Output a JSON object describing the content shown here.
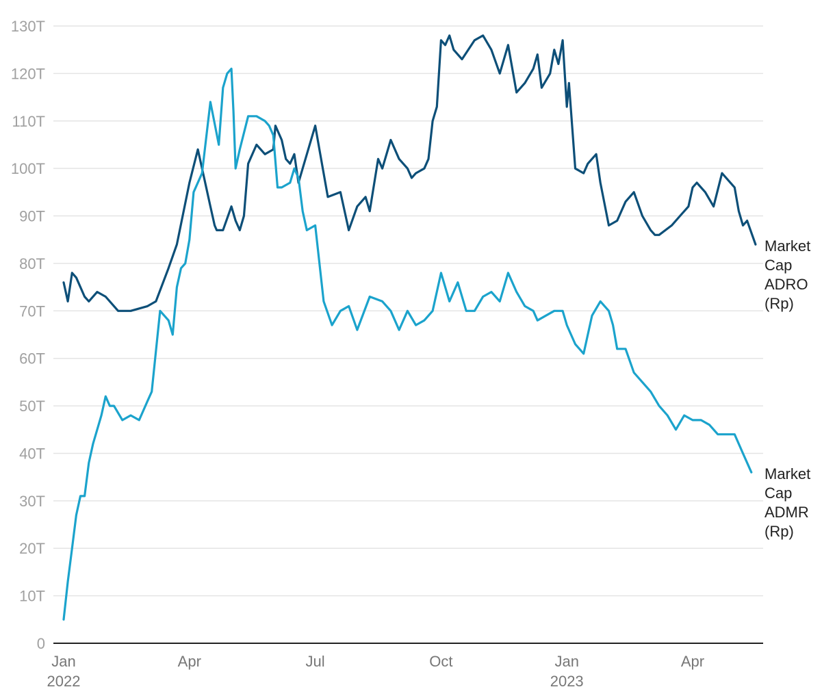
{
  "chart_data": {
    "type": "line",
    "title": "",
    "xlabel": "",
    "ylabel": "",
    "ylim": [
      0,
      130
    ],
    "y_unit_suffix": "T",
    "y_ticks": [
      "0",
      "10T",
      "20T",
      "30T",
      "40T",
      "50T",
      "60T",
      "70T",
      "80T",
      "90T",
      "100T",
      "110T",
      "120T",
      "130T"
    ],
    "x_ticks": [
      {
        "month": 0,
        "label": "Jan",
        "sub": "2022"
      },
      {
        "month": 3,
        "label": "Apr",
        "sub": ""
      },
      {
        "month": 6,
        "label": "Jul",
        "sub": ""
      },
      {
        "month": 9,
        "label": "Oct",
        "sub": ""
      },
      {
        "month": 12,
        "label": "Jan",
        "sub": "2023"
      },
      {
        "month": 15,
        "label": "Apr",
        "sub": ""
      }
    ],
    "x_unit": "months since Jan 2022",
    "xlim": [
      0,
      16.7
    ],
    "grid": true,
    "legend": "end-of-line labels",
    "series": [
      {
        "name": "Market Cap ADRO (Rp)",
        "label_lines": [
          "Market",
          "Cap",
          "ADRO",
          "(Rp)"
        ],
        "color": "#0d4f78",
        "x": [
          0.0,
          0.1,
          0.2,
          0.3,
          0.5,
          0.6,
          0.8,
          1.0,
          1.3,
          1.6,
          2.0,
          2.2,
          2.5,
          2.7,
          3.0,
          3.2,
          3.4,
          3.5,
          3.6,
          3.65,
          3.8,
          4.0,
          4.1,
          4.2,
          4.3,
          4.4,
          4.6,
          4.8,
          5.0,
          5.05,
          5.2,
          5.3,
          5.4,
          5.5,
          5.6,
          5.7,
          6.0,
          6.1,
          6.3,
          6.6,
          6.8,
          7.0,
          7.2,
          7.3,
          7.5,
          7.6,
          7.8,
          8.0,
          8.2,
          8.3,
          8.4,
          8.6,
          8.7,
          8.8,
          8.9,
          9.0,
          9.1,
          9.2,
          9.3,
          9.5,
          9.8,
          10.0,
          10.2,
          10.4,
          10.6,
          10.8,
          11.0,
          11.2,
          11.3,
          11.4,
          11.6,
          11.7,
          11.8,
          11.9,
          12.0,
          12.05,
          12.2,
          12.4,
          12.5,
          12.7,
          12.8,
          13.0,
          13.2,
          13.4,
          13.6,
          13.8,
          14.0,
          14.1,
          14.2,
          14.5,
          14.7,
          14.9,
          15.0,
          15.1,
          15.3,
          15.5,
          15.7,
          16.0,
          16.1,
          16.2,
          16.3,
          16.5
        ],
        "values": [
          76,
          72,
          78,
          77,
          73,
          72,
          74,
          73,
          70,
          70,
          71,
          72,
          79,
          84,
          97,
          104,
          96,
          92,
          88,
          87,
          87,
          92,
          89,
          87,
          90,
          101,
          105,
          103,
          104,
          109,
          106,
          102,
          101,
          103,
          97,
          100,
          109,
          104,
          94,
          95,
          87,
          92,
          94,
          91,
          102,
          100,
          106,
          102,
          100,
          98,
          99,
          100,
          102,
          110,
          113,
          127,
          126,
          128,
          125,
          123,
          127,
          128,
          125,
          120,
          126,
          116,
          118,
          121,
          124,
          117,
          120,
          125,
          122,
          127,
          113,
          118,
          100,
          99,
          101,
          103,
          97,
          88,
          89,
          93,
          95,
          90,
          87,
          86,
          86,
          88,
          90,
          92,
          96,
          97,
          95,
          92,
          99,
          96,
          91,
          88,
          89,
          84
        ]
      },
      {
        "name": "Market Cap ADMR (Rp)",
        "label_lines": [
          "Market",
          "Cap",
          "ADMR",
          "(Rp)"
        ],
        "color": "#1ba3cc",
        "x": [
          0.0,
          0.1,
          0.2,
          0.3,
          0.4,
          0.5,
          0.6,
          0.7,
          0.8,
          0.9,
          1.0,
          1.1,
          1.2,
          1.4,
          1.6,
          1.8,
          2.0,
          2.1,
          2.3,
          2.5,
          2.6,
          2.7,
          2.8,
          2.9,
          3.0,
          3.1,
          3.3,
          3.5,
          3.7,
          3.8,
          3.9,
          4.0,
          4.05,
          4.1,
          4.2,
          4.4,
          4.6,
          4.8,
          4.9,
          5.0,
          5.1,
          5.2,
          5.4,
          5.5,
          5.6,
          5.7,
          5.8,
          6.0,
          6.2,
          6.4,
          6.6,
          6.8,
          7.0,
          7.3,
          7.6,
          7.8,
          8.0,
          8.2,
          8.4,
          8.6,
          8.8,
          9.0,
          9.2,
          9.4,
          9.6,
          9.8,
          10.0,
          10.2,
          10.4,
          10.6,
          10.8,
          11.0,
          11.2,
          11.3,
          11.5,
          11.7,
          11.9,
          12.0,
          12.2,
          12.4,
          12.6,
          12.8,
          13.0,
          13.1,
          13.2,
          13.4,
          13.6,
          13.8,
          14.0,
          14.2,
          14.4,
          14.6,
          14.8,
          15.0,
          15.2,
          15.4,
          15.6,
          15.8,
          16.0,
          16.2,
          16.4
        ],
        "values": [
          5,
          13,
          20,
          27,
          31,
          31,
          38,
          42,
          45,
          48,
          52,
          50,
          50,
          47,
          48,
          47,
          51,
          53,
          70,
          68,
          65,
          75,
          79,
          80,
          85,
          95,
          99,
          114,
          105,
          117,
          120,
          121,
          112,
          100,
          104,
          111,
          111,
          110,
          109,
          107,
          96,
          96,
          97,
          100,
          98,
          91,
          87,
          88,
          72,
          67,
          70,
          71,
          66,
          73,
          72,
          70,
          66,
          70,
          67,
          68,
          70,
          78,
          72,
          76,
          70,
          70,
          73,
          74,
          72,
          78,
          74,
          71,
          70,
          68,
          69,
          70,
          70,
          67,
          63,
          61,
          69,
          72,
          70,
          67,
          62,
          62,
          57,
          55,
          53,
          50,
          48,
          45,
          48,
          47,
          47,
          46,
          44,
          44,
          44,
          40,
          36
        ]
      }
    ]
  }
}
